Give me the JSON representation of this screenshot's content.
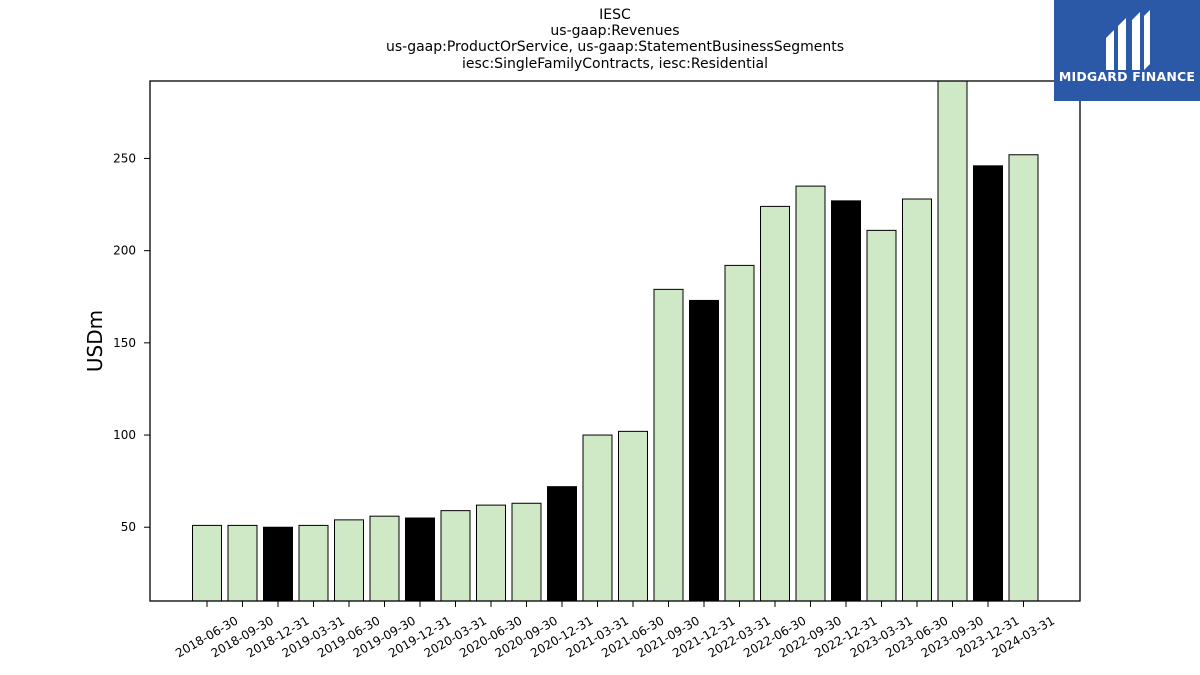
{
  "title_lines": [
    "IESC",
    "us-gaap:Revenues",
    "us-gaap:ProductOrService, us-gaap:StatementBusinessSegments",
    "iesc:SingleFamilyContracts, iesc:Residential"
  ],
  "logo": {
    "text": "MIDGARD FINANCE",
    "icon": "midgard-logo-icon",
    "background": "#2b59a8"
  },
  "colors": {
    "quarter_bar": "#cfe8c6",
    "year_end_bar": "#000000",
    "bar_edge": "#000000"
  },
  "chart_data": {
    "type": "bar",
    "ylabel": "USDm",
    "xlabel": "",
    "ylim": [
      10,
      292
    ],
    "yticks": [
      50,
      100,
      150,
      200,
      250
    ],
    "grid": false,
    "categories": [
      "2018-06-30",
      "2018-09-30",
      "2018-12-31",
      "2019-03-31",
      "2019-06-30",
      "2019-09-30",
      "2019-12-31",
      "2020-03-31",
      "2020-06-30",
      "2020-09-30",
      "2020-12-31",
      "2021-03-31",
      "2021-06-30",
      "2021-09-30",
      "2021-12-31",
      "2022-03-31",
      "2022-06-30",
      "2022-09-30",
      "2022-12-31",
      "2023-03-31",
      "2023-06-30",
      "2023-09-30",
      "2023-12-31",
      "2024-03-31"
    ],
    "values": [
      51,
      51,
      50,
      51,
      54,
      56,
      55,
      59,
      62,
      63,
      72,
      100,
      102,
      179,
      173,
      192,
      224,
      235,
      227,
      211,
      228,
      294,
      246,
      252
    ]
  }
}
